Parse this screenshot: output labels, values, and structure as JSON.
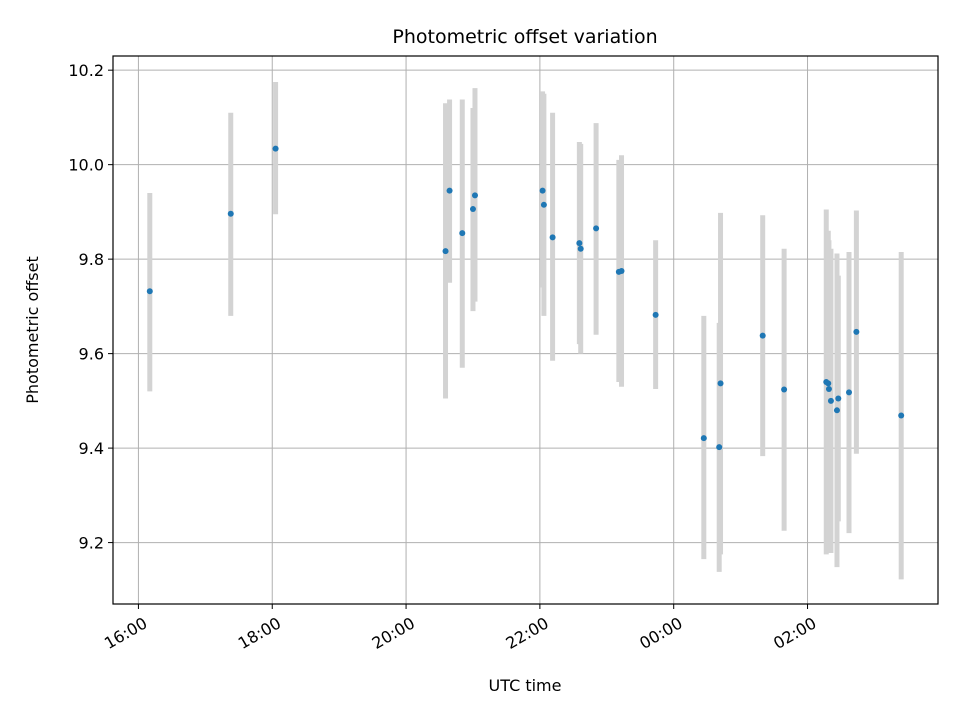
{
  "chart_data": {
    "type": "scatter",
    "title": "Photometric offset variation",
    "xlabel": "UTC time",
    "ylabel": "Photometric offset",
    "x_unit": "hours after 16:00 UTC",
    "xlim": [
      -0.38,
      11.95
    ],
    "ylim": [
      9.07,
      10.23
    ],
    "x_ticks": [
      0,
      2,
      4,
      6,
      8,
      10
    ],
    "x_tick_labels": [
      "16:00",
      "18:00",
      "20:00",
      "22:00",
      "00:00",
      "02:00"
    ],
    "y_ticks": [
      9.2,
      9.4,
      9.6,
      9.8,
      10.0,
      10.2
    ],
    "y_tick_labels": [
      "9.2",
      "9.4",
      "9.6",
      "9.8",
      "10.0",
      "10.2"
    ],
    "grid": true,
    "marker_color": "#1f77b4",
    "errorbar_color": "#d3d3d3",
    "points": [
      {
        "x": 0.17,
        "y": 9.732,
        "ylo": 9.52,
        "yhi": 9.94
      },
      {
        "x": 1.38,
        "y": 9.896,
        "ylo": 9.68,
        "yhi": 10.11
      },
      {
        "x": 2.05,
        "y": 10.034,
        "ylo": 9.895,
        "yhi": 10.175
      },
      {
        "x": 4.59,
        "y": 9.817,
        "ylo": 9.505,
        "yhi": 10.13
      },
      {
        "x": 4.65,
        "y": 9.945,
        "ylo": 9.75,
        "yhi": 10.138
      },
      {
        "x": 4.84,
        "y": 9.855,
        "ylo": 9.57,
        "yhi": 10.138
      },
      {
        "x": 5.0,
        "y": 9.906,
        "ylo": 9.69,
        "yhi": 10.12
      },
      {
        "x": 5.03,
        "y": 9.935,
        "ylo": 9.71,
        "yhi": 10.162
      },
      {
        "x": 6.04,
        "y": 9.945,
        "ylo": 9.74,
        "yhi": 10.155
      },
      {
        "x": 6.06,
        "y": 9.915,
        "ylo": 9.68,
        "yhi": 10.15
      },
      {
        "x": 6.19,
        "y": 9.846,
        "ylo": 9.585,
        "yhi": 10.11
      },
      {
        "x": 6.59,
        "y": 9.834,
        "ylo": 9.62,
        "yhi": 10.048
      },
      {
        "x": 6.61,
        "y": 9.822,
        "ylo": 9.6,
        "yhi": 10.044
      },
      {
        "x": 6.84,
        "y": 9.865,
        "ylo": 9.64,
        "yhi": 10.088
      },
      {
        "x": 7.18,
        "y": 9.773,
        "ylo": 9.54,
        "yhi": 10.01
      },
      {
        "x": 7.22,
        "y": 9.775,
        "ylo": 9.53,
        "yhi": 10.02
      },
      {
        "x": 7.73,
        "y": 9.682,
        "ylo": 9.525,
        "yhi": 9.84
      },
      {
        "x": 8.45,
        "y": 9.421,
        "ylo": 9.165,
        "yhi": 9.68
      },
      {
        "x": 8.68,
        "y": 9.402,
        "ylo": 9.138,
        "yhi": 9.665
      },
      {
        "x": 8.7,
        "y": 9.537,
        "ylo": 9.175,
        "yhi": 9.898
      },
      {
        "x": 9.33,
        "y": 9.638,
        "ylo": 9.383,
        "yhi": 9.893
      },
      {
        "x": 9.65,
        "y": 9.524,
        "ylo": 9.225,
        "yhi": 9.822
      },
      {
        "x": 10.28,
        "y": 9.54,
        "ylo": 9.175,
        "yhi": 9.905
      },
      {
        "x": 10.31,
        "y": 9.537,
        "ylo": 9.2,
        "yhi": 9.86
      },
      {
        "x": 10.32,
        "y": 9.525,
        "ylo": 9.19,
        "yhi": 9.84
      },
      {
        "x": 10.35,
        "y": 9.5,
        "ylo": 9.178,
        "yhi": 9.822
      },
      {
        "x": 10.44,
        "y": 9.48,
        "ylo": 9.148,
        "yhi": 9.812
      },
      {
        "x": 10.46,
        "y": 9.505,
        "ylo": 9.245,
        "yhi": 9.765
      },
      {
        "x": 10.62,
        "y": 9.518,
        "ylo": 9.22,
        "yhi": 9.815
      },
      {
        "x": 10.73,
        "y": 9.646,
        "ylo": 9.388,
        "yhi": 9.903
      },
      {
        "x": 11.4,
        "y": 9.469,
        "ylo": 9.122,
        "yhi": 9.815
      }
    ]
  }
}
